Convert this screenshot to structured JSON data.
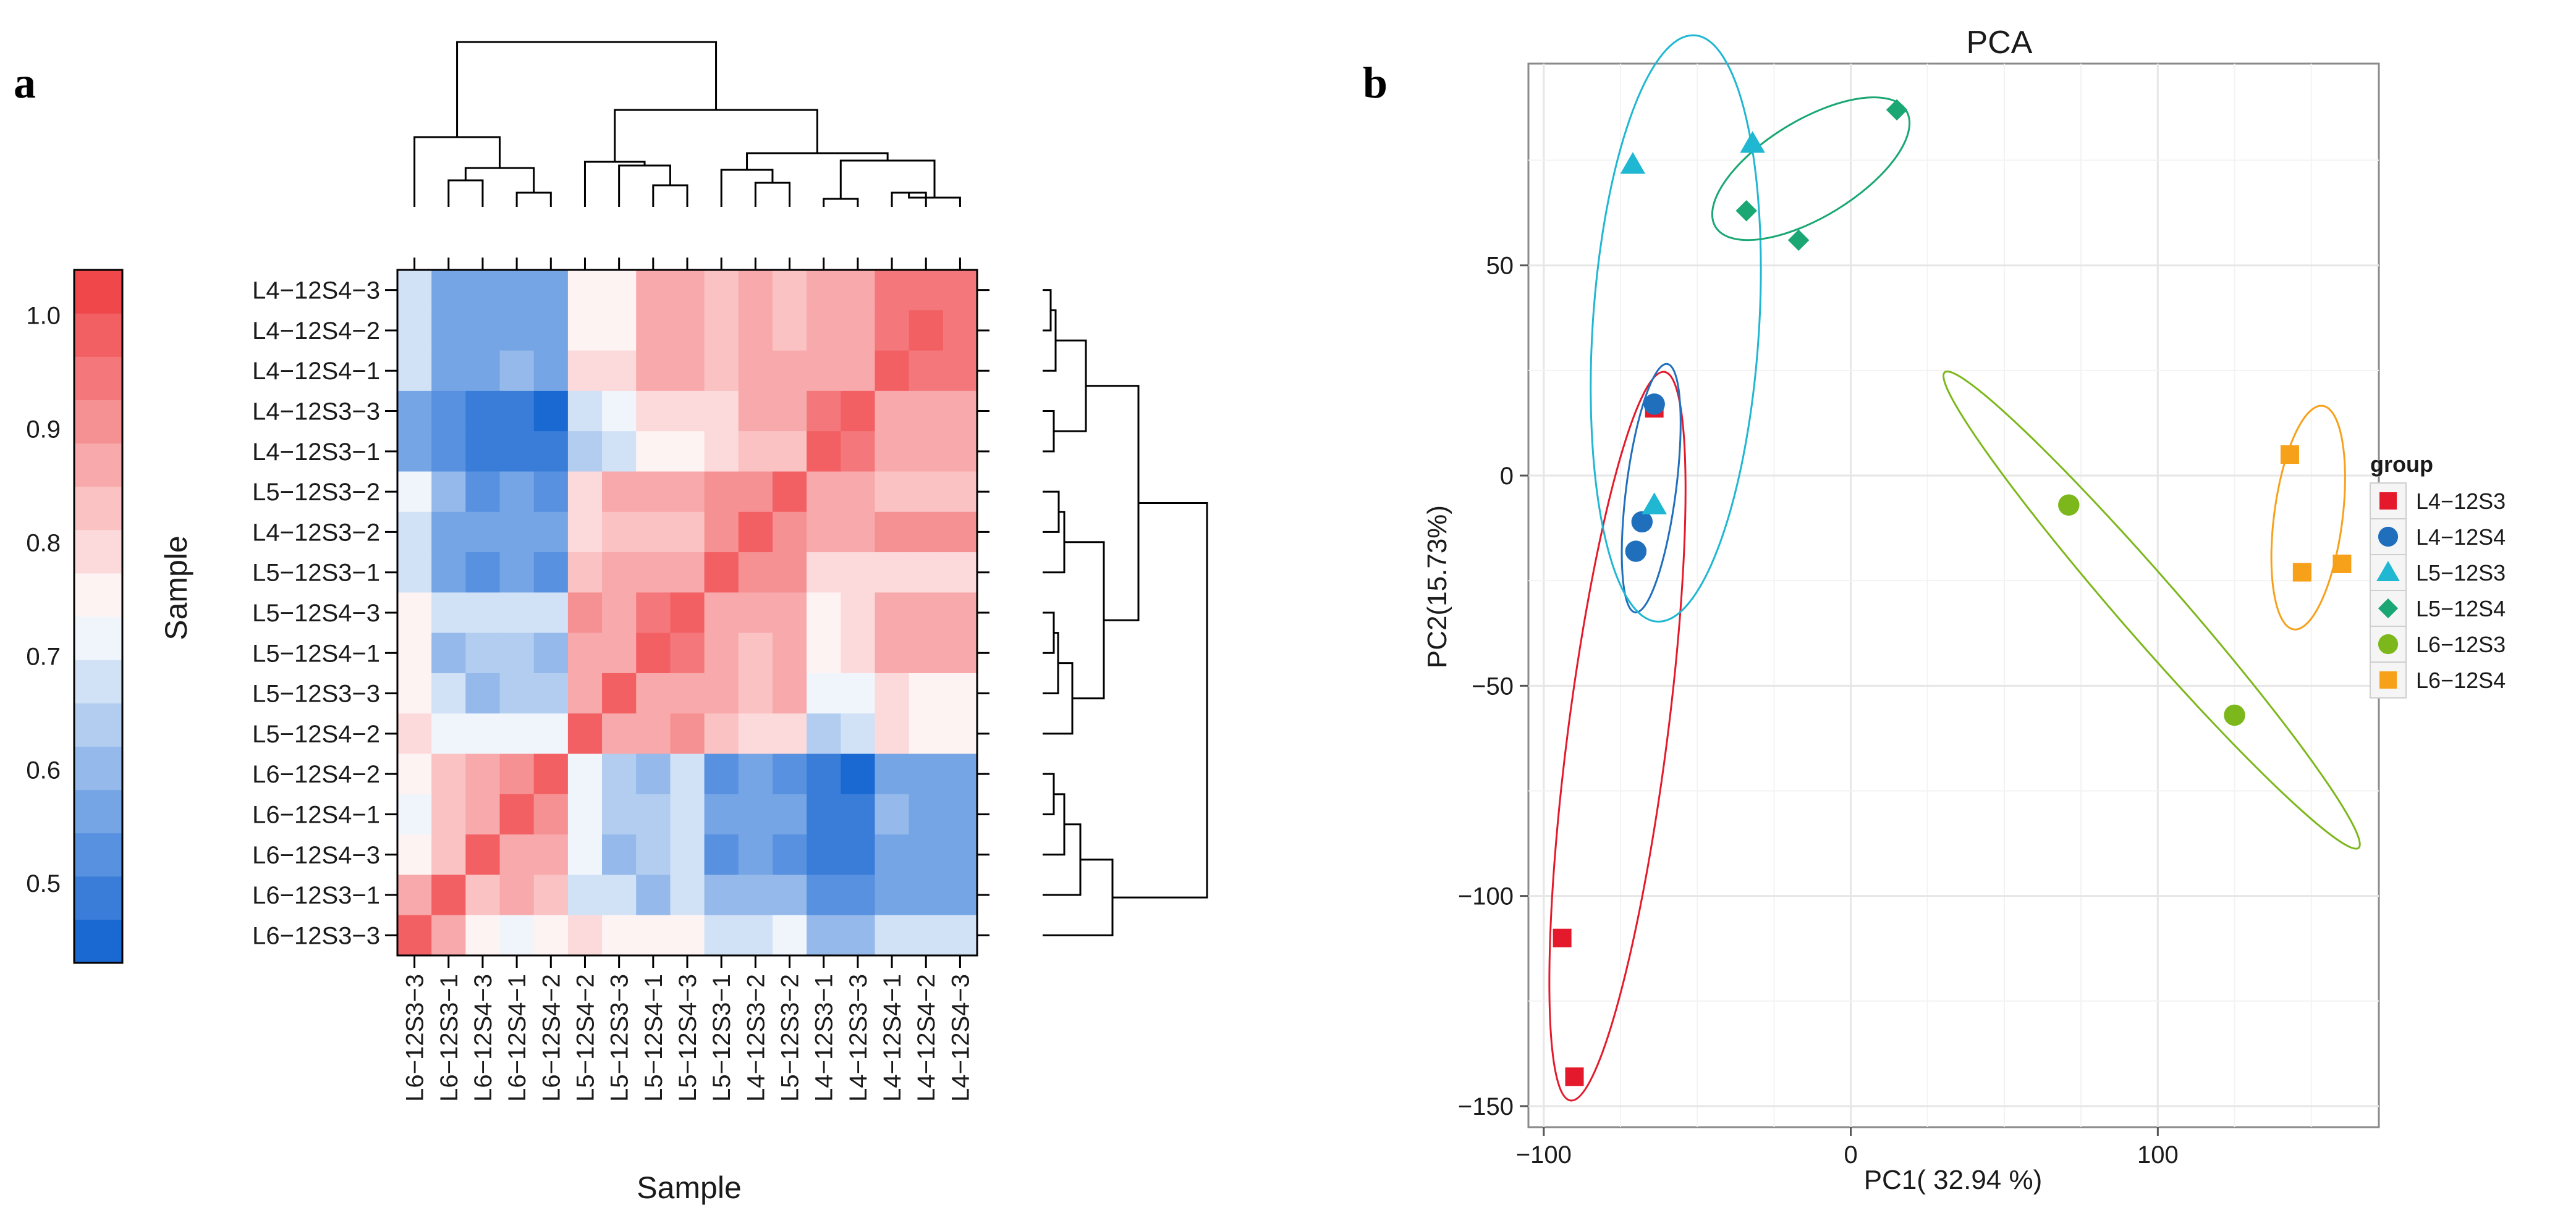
{
  "panel_labels": {
    "left": "a",
    "right": "b"
  },
  "chart_data": [
    {
      "type": "heatmap",
      "title": "",
      "xlabel": "Sample",
      "ylabel": "Sample",
      "colorbar": {
        "ticks": [
          1.0,
          0.9,
          0.8,
          0.7,
          0.6,
          0.5
        ],
        "tick_labels": [
          "1.0",
          "0.9",
          "0.8",
          "0.7",
          "0.6",
          "0.5"
        ],
        "range": [
          0.43,
          1.04
        ],
        "n_steps": 16,
        "low_color": "#0b5fd0",
        "mid_color": "#ffffff",
        "high_color": "#ef3b3f"
      },
      "row_labels": [
        "L4-12S4-3",
        "L4-12S4-2",
        "L4-12S4-1",
        "L4-12S3-3",
        "L4-12S3-1",
        "L5-12S3-2",
        "L4-12S3-2",
        "L5-12S3-1",
        "L5-12S4-3",
        "L5-12S4-1",
        "L5-12S3-3",
        "L5-12S4-2",
        "L6-12S4-2",
        "L6-12S4-1",
        "L6-12S4-3",
        "L6-12S3-1",
        "L6-12S3-3"
      ],
      "col_labels": [
        "L6-12S3-3",
        "L6-12S3-1",
        "L6-12S4-3",
        "L6-12S4-1",
        "L6-12S4-2",
        "L5-12S4-2",
        "L5-12S3-3",
        "L5-12S4-1",
        "L5-12S4-3",
        "L5-12S3-1",
        "L4-12S3-2",
        "L5-12S3-2",
        "L4-12S3-1",
        "L4-12S3-3",
        "L4-12S4-1",
        "L4-12S4-2",
        "L4-12S4-3"
      ],
      "values": [
        [
          0.66,
          0.56,
          0.56,
          0.56,
          0.56,
          0.76,
          0.76,
          0.85,
          0.85,
          0.82,
          0.86,
          0.84,
          0.88,
          0.88,
          0.93,
          0.94,
          0.96
        ],
        [
          0.66,
          0.56,
          0.56,
          0.56,
          0.56,
          0.76,
          0.76,
          0.85,
          0.85,
          0.82,
          0.87,
          0.84,
          0.88,
          0.88,
          0.94,
          0.97,
          0.94
        ],
        [
          0.66,
          0.56,
          0.56,
          0.62,
          0.56,
          0.79,
          0.79,
          0.85,
          0.86,
          0.82,
          0.88,
          0.85,
          0.86,
          0.87,
          0.97,
          0.94,
          0.93
        ],
        [
          0.58,
          0.52,
          0.49,
          0.49,
          0.46,
          0.66,
          0.73,
          0.79,
          0.79,
          0.78,
          0.86,
          0.86,
          0.96,
          1.0,
          0.87,
          0.88,
          0.88
        ],
        [
          0.58,
          0.52,
          0.49,
          0.49,
          0.49,
          0.63,
          0.69,
          0.76,
          0.76,
          0.79,
          0.84,
          0.84,
          1.0,
          0.96,
          0.86,
          0.88,
          0.88
        ],
        [
          0.7,
          0.6,
          0.51,
          0.56,
          0.51,
          0.81,
          0.86,
          0.88,
          0.85,
          0.9,
          0.9,
          1.0,
          0.85,
          0.86,
          0.84,
          0.84,
          0.84
        ],
        [
          0.67,
          0.58,
          0.55,
          0.55,
          0.55,
          0.8,
          0.83,
          0.83,
          0.84,
          0.91,
          1.0,
          0.9,
          0.85,
          0.87,
          0.9,
          0.89,
          0.89
        ],
        [
          0.67,
          0.58,
          0.51,
          0.55,
          0.51,
          0.82,
          0.87,
          0.86,
          0.86,
          1.0,
          0.91,
          0.9,
          0.8,
          0.81,
          0.81,
          0.81,
          0.81
        ],
        [
          0.75,
          0.66,
          0.66,
          0.66,
          0.66,
          0.9,
          0.86,
          0.93,
          1.0,
          0.86,
          0.85,
          0.85,
          0.77,
          0.79,
          0.88,
          0.85,
          0.85
        ],
        [
          0.75,
          0.6,
          0.63,
          0.63,
          0.6,
          0.88,
          0.87,
          1.0,
          0.93,
          0.86,
          0.83,
          0.88,
          0.76,
          0.79,
          0.85,
          0.85,
          0.85
        ],
        [
          0.75,
          0.66,
          0.6,
          0.63,
          0.63,
          0.87,
          1.0,
          0.87,
          0.86,
          0.87,
          0.83,
          0.86,
          0.7,
          0.73,
          0.79,
          0.75,
          0.75
        ],
        [
          0.81,
          0.7,
          0.7,
          0.7,
          0.7,
          1.0,
          0.87,
          0.88,
          0.9,
          0.82,
          0.8,
          0.81,
          0.63,
          0.66,
          0.79,
          0.77,
          0.77
        ],
        [
          0.76,
          0.84,
          0.88,
          0.9,
          1.0,
          0.71,
          0.63,
          0.6,
          0.66,
          0.51,
          0.56,
          0.51,
          0.49,
          0.46,
          0.56,
          0.56,
          0.56
        ],
        [
          0.72,
          0.84,
          0.86,
          1.0,
          0.9,
          0.71,
          0.63,
          0.63,
          0.66,
          0.56,
          0.56,
          0.56,
          0.49,
          0.49,
          0.62,
          0.56,
          0.56
        ],
        [
          0.76,
          0.82,
          1.0,
          0.86,
          0.88,
          0.71,
          0.6,
          0.63,
          0.66,
          0.51,
          0.56,
          0.51,
          0.49,
          0.49,
          0.56,
          0.56,
          0.56
        ],
        [
          0.85,
          1.0,
          0.82,
          0.86,
          0.84,
          0.69,
          0.69,
          0.6,
          0.66,
          0.6,
          0.6,
          0.6,
          0.52,
          0.52,
          0.56,
          0.56,
          0.56
        ],
        [
          1.0,
          0.85,
          0.76,
          0.72,
          0.76,
          0.81,
          0.76,
          0.76,
          0.76,
          0.69,
          0.69,
          0.71,
          0.6,
          0.6,
          0.66,
          0.66,
          0.66
        ]
      ],
      "col_dendrogram_order": [
        "L6 group (cols 1-5)",
        "L5/L4 group (cols 6-17)"
      ],
      "row_dendrogram_order": [
        "L4/L5 group (rows 1-12)",
        "L6 group (rows 13-17)"
      ]
    },
    {
      "type": "scatter",
      "title": "PCA",
      "xlabel": "PC1( 32.94 %)",
      "ylabel": "PC2(15.73%)",
      "xlim": [
        -105,
        172
      ],
      "ylim": [
        -155,
        98
      ],
      "xticks": [
        -100,
        0,
        100
      ],
      "yticks": [
        50,
        0,
        -50,
        -100,
        -150
      ],
      "xtick_labels": [
        "−100",
        "0",
        "100"
      ],
      "ytick_labels": [
        "50",
        "0",
        "−50",
        "−100",
        "−150"
      ],
      "grid": true,
      "legend": {
        "title": "group",
        "position": "right"
      },
      "series": [
        {
          "name": "L4−12S3",
          "color": "#e41a2c",
          "shape": "square",
          "points": [
            [
              -64,
              16
            ],
            [
              -94,
              -110
            ],
            [
              -90,
              -143
            ]
          ],
          "ellipse": {
            "cx": -76,
            "cy": -62,
            "rx": 88,
            "ry": 16,
            "angle": 80
          }
        },
        {
          "name": "L4−12S4",
          "color": "#1f6fbd",
          "shape": "circle",
          "points": [
            [
              -64,
              17
            ],
            [
              -68,
              -11
            ],
            [
              -70,
              -18
            ]
          ],
          "ellipse": {
            "cx": -65,
            "cy": -3,
            "rx": 30,
            "ry": 8,
            "angle": 80
          }
        },
        {
          "name": "L5−12S3",
          "color": "#1fb7d2",
          "shape": "triangle",
          "points": [
            [
              -71,
              74
            ],
            [
              -32,
              79
            ],
            [
              -64,
              -7
            ]
          ],
          "ellipse": {
            "cx": -57,
            "cy": 35,
            "rx": 70,
            "ry": 27,
            "angle": 85
          }
        },
        {
          "name": "L5−12S4",
          "color": "#1aa773",
          "shape": "diamond",
          "points": [
            [
              15,
              87
            ],
            [
              -34,
              63
            ],
            [
              -17,
              56
            ]
          ],
          "ellipse": {
            "cx": -13,
            "cy": 73,
            "rx": 34,
            "ry": 12,
            "angle": 24
          }
        },
        {
          "name": "L6−12S3",
          "color": "#7cb81c",
          "shape": "circle",
          "points": [
            [
              71,
              -7
            ],
            [
              125,
              -57
            ]
          ],
          "ellipse": {
            "cx": 98,
            "cy": -32,
            "rx": 88,
            "ry": 8,
            "angle": -40
          }
        },
        {
          "name": "L6−12S4",
          "color": "#f7a11b",
          "shape": "square",
          "points": [
            [
              143,
              5
            ],
            [
              147,
              -23
            ],
            [
              160,
              -21
            ]
          ],
          "ellipse": {
            "cx": 149,
            "cy": -10,
            "rx": 27,
            "ry": 11,
            "angle": 80
          }
        }
      ]
    }
  ]
}
